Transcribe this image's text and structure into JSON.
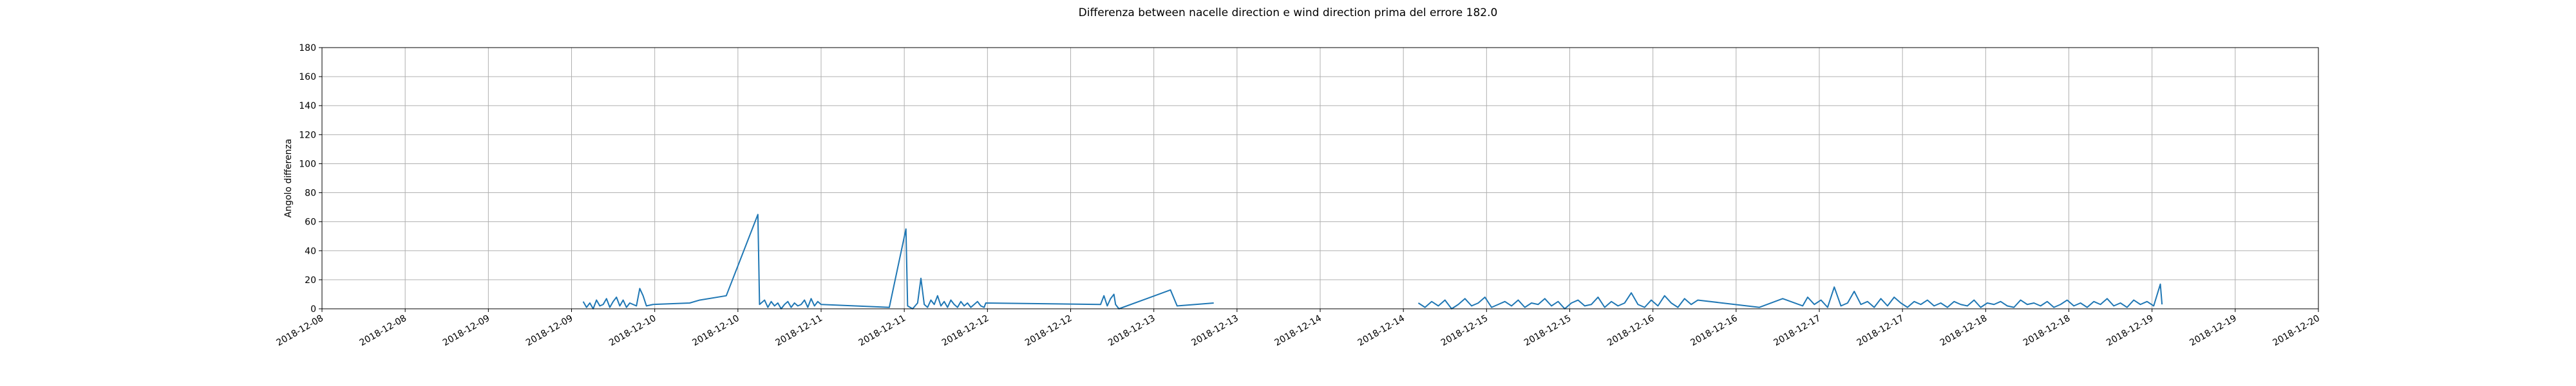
{
  "chart_data": {
    "type": "line",
    "title": "Differenza between nacelle direction e wind direction prima del errore 182.0",
    "ylabel": "Angolo differenza",
    "x": [
      17874.57,
      17874.59,
      17874.61,
      17874.63,
      17874.65,
      17874.67,
      17874.69,
      17874.71,
      17874.73,
      17874.75,
      17874.77,
      17874.79,
      17874.81,
      17874.83,
      17874.85,
      17874.87,
      17874.89,
      17874.91,
      17874.93,
      17874.95,
      17874.99,
      17875.21,
      17875.27,
      17875.43,
      17875.62,
      17875.63,
      17875.66,
      17875.68,
      17875.7,
      17875.72,
      17875.74,
      17875.76,
      17875.78,
      17875.8,
      17875.82,
      17875.84,
      17875.86,
      17875.88,
      17875.9,
      17875.92,
      17875.94,
      17875.96,
      17875.98,
      17876.0,
      17876.41,
      17876.51,
      17876.52,
      17876.55,
      17876.58,
      17876.6,
      17876.62,
      17876.64,
      17876.66,
      17876.68,
      17876.7,
      17876.72,
      17876.74,
      17876.76,
      17876.78,
      17876.8,
      17876.82,
      17876.84,
      17876.86,
      17876.88,
      17876.9,
      17876.92,
      17876.94,
      17876.96,
      17876.98,
      17876.99,
      17877.68,
      17877.7,
      17877.72,
      17877.74,
      17877.76,
      17877.77,
      17877.79,
      17878.1,
      17878.14,
      17878.36,
      null,
      17879.59,
      17879.63,
      17879.67,
      17879.71,
      17879.75,
      17879.79,
      17879.83,
      17879.87,
      17879.91,
      17879.95,
      17879.99,
      17880.03,
      17880.07,
      17880.11,
      17880.15,
      17880.19,
      17880.23,
      17880.27,
      17880.31,
      17880.35,
      17880.39,
      17880.43,
      17880.47,
      17880.51,
      17880.55,
      17880.59,
      17880.63,
      17880.67,
      17880.71,
      17880.75,
      17880.79,
      17880.83,
      17880.87,
      17880.91,
      17880.95,
      17880.99,
      17881.03,
      17881.07,
      17881.11,
      17881.15,
      17881.19,
      17881.23,
      17881.27,
      17881.64,
      17881.78,
      17881.9,
      17881.93,
      17881.97,
      17882.01,
      17882.05,
      17882.09,
      17882.13,
      17882.17,
      17882.21,
      17882.25,
      17882.29,
      17882.33,
      17882.37,
      17882.41,
      17882.45,
      17882.49,
      17882.53,
      17882.57,
      17882.61,
      17882.65,
      17882.69,
      17882.73,
      17882.77,
      17882.81,
      17882.85,
      17882.89,
      17882.93,
      17882.97,
      17883.01,
      17883.05,
      17883.09,
      17883.13,
      17883.17,
      17883.21,
      17883.25,
      17883.29,
      17883.33,
      17883.37,
      17883.41,
      17883.45,
      17883.49,
      17883.53,
      17883.57,
      17883.61,
      17883.65,
      17883.69,
      17883.73,
      17883.77,
      17883.81,
      17883.85,
      17883.89,
      17883.93,
      17883.97,
      17884.01,
      17884.05,
      17884.06
    ],
    "series": [
      {
        "color": "#1f77b4",
        "values": [
          5,
          1,
          4,
          0,
          6,
          2,
          3,
          7,
          1,
          5,
          8,
          2,
          6,
          1,
          4,
          3,
          2,
          14,
          9,
          2,
          3,
          4,
          6,
          9,
          65,
          3,
          6,
          1,
          5,
          2,
          4,
          0,
          3,
          5,
          1,
          4,
          2,
          3,
          6,
          1,
          7,
          2,
          5,
          3,
          1,
          55,
          2,
          0,
          4,
          21,
          3,
          1,
          6,
          3,
          9,
          2,
          5,
          1,
          6,
          3,
          1,
          5,
          2,
          4,
          1,
          3,
          5,
          2,
          1,
          4,
          3,
          9,
          2,
          7,
          10,
          3,
          0,
          13,
          2,
          4,
          null,
          4,
          1,
          5,
          2,
          6,
          0,
          3,
          7,
          2,
          4,
          8,
          1,
          3,
          5,
          2,
          6,
          1,
          4,
          3,
          7,
          2,
          5,
          0,
          4,
          6,
          2,
          3,
          8,
          1,
          5,
          2,
          4,
          11,
          3,
          1,
          6,
          2,
          9,
          4,
          1,
          7,
          3,
          6,
          1,
          7,
          2,
          8,
          3,
          6,
          1,
          15,
          2,
          4,
          12,
          3,
          5,
          1,
          7,
          2,
          8,
          4,
          1,
          5,
          3,
          6,
          2,
          4,
          1,
          5,
          3,
          2,
          6,
          1,
          4,
          3,
          5,
          2,
          1,
          6,
          3,
          4,
          2,
          5,
          1,
          3,
          6,
          2,
          4,
          1,
          5,
          3,
          7,
          2,
          4,
          1,
          6,
          3,
          5,
          2,
          17,
          3
        ]
      }
    ],
    "xlim": [
      17873,
      17885
    ],
    "xticks": [
      {
        "value": 17873,
        "label": "2018-12-08"
      },
      {
        "value": 17873.5,
        "label": "2018-12-08"
      },
      {
        "value": 17874,
        "label": "2018-12-09"
      },
      {
        "value": 17874.5,
        "label": "2018-12-09"
      },
      {
        "value": 17875,
        "label": "2018-12-10"
      },
      {
        "value": 17875.5,
        "label": "2018-12-10"
      },
      {
        "value": 17876,
        "label": "2018-12-11"
      },
      {
        "value": 17876.5,
        "label": "2018-12-11"
      },
      {
        "value": 17877,
        "label": "2018-12-12"
      },
      {
        "value": 17877.5,
        "label": "2018-12-12"
      },
      {
        "value": 17878,
        "label": "2018-12-13"
      },
      {
        "value": 17878.5,
        "label": "2018-12-13"
      },
      {
        "value": 17879,
        "label": "2018-12-14"
      },
      {
        "value": 17879.5,
        "label": "2018-12-14"
      },
      {
        "value": 17880,
        "label": "2018-12-15"
      },
      {
        "value": 17880.5,
        "label": "2018-12-15"
      },
      {
        "value": 17881,
        "label": "2018-12-16"
      },
      {
        "value": 17881.5,
        "label": "2018-12-16"
      },
      {
        "value": 17882,
        "label": "2018-12-17"
      },
      {
        "value": 17882.5,
        "label": "2018-12-17"
      },
      {
        "value": 17883,
        "label": "2018-12-18"
      },
      {
        "value": 17883.5,
        "label": "2018-12-18"
      },
      {
        "value": 17884,
        "label": "2018-12-19"
      },
      {
        "value": 17884.5,
        "label": "2018-12-19"
      },
      {
        "value": 17885,
        "label": "2018-12-20"
      }
    ],
    "ylim": [
      0,
      180
    ],
    "yticks": [
      0,
      20,
      40,
      60,
      80,
      100,
      120,
      140,
      160,
      180
    ],
    "grid": true
  }
}
